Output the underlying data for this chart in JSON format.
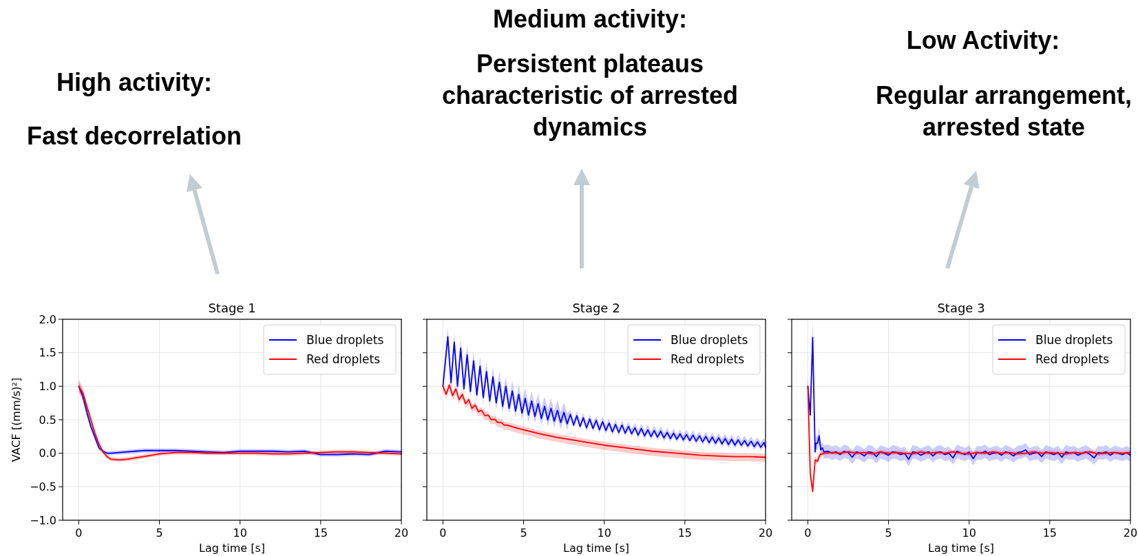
{
  "chart_data": [
    {
      "type": "line",
      "title": "Stage 1",
      "xlabel": "Lag time [s]",
      "ylabel": "VACF [(mm/s)²]",
      "annotations": [
        "High activity:",
        "Fast decorrelation"
      ],
      "xlim": [
        -1,
        20
      ],
      "xticks": [
        0,
        5,
        10,
        15,
        20
      ],
      "ylim": [
        -1,
        2
      ],
      "yticks": [
        {
          "value": -1,
          "label": "−1.0"
        },
        {
          "value": -0.5,
          "label": "−0.5"
        },
        {
          "value": 0,
          "label": "0.0"
        },
        {
          "value": 0.5,
          "label": "0.5"
        },
        {
          "value": 1,
          "label": "1.0"
        },
        {
          "value": 1.5,
          "label": "1.5"
        },
        {
          "value": 2,
          "label": "2.0"
        }
      ],
      "grid": true,
      "legend": "top right",
      "series": [
        {
          "name": "Blue droplets",
          "color": "#0000ff",
          "x": [
            0,
            0.25,
            0.5,
            0.75,
            1,
            1.25,
            1.5,
            1.75,
            2,
            2.5,
            3,
            3.5,
            4,
            5,
            6,
            7,
            8,
            9,
            10,
            11,
            12,
            13,
            14,
            15,
            16,
            17,
            18,
            19,
            20
          ],
          "values": [
            1.0,
            0.85,
            0.61,
            0.4,
            0.24,
            0.08,
            0.03,
            0.0,
            0.0,
            0.01,
            0.02,
            0.03,
            0.04,
            0.04,
            0.04,
            0.03,
            0.02,
            0.01,
            0.03,
            0.03,
            0.03,
            0.02,
            0.03,
            -0.02,
            -0.02,
            -0.01,
            -0.02,
            0.03,
            0.02
          ],
          "upper": [
            1.08,
            0.92,
            0.67,
            0.45,
            0.28,
            0.12,
            0.06,
            0.03,
            0.03,
            0.04,
            0.05,
            0.06,
            0.07,
            0.07,
            0.07,
            0.06,
            0.05,
            0.04,
            0.06,
            0.06,
            0.06,
            0.05,
            0.06,
            0.01,
            0.01,
            0.02,
            0.01,
            0.06,
            0.05
          ],
          "lower": [
            0.92,
            0.78,
            0.55,
            0.35,
            0.2,
            0.04,
            0.0,
            -0.03,
            -0.03,
            -0.02,
            -0.01,
            0.0,
            0.01,
            0.01,
            0.01,
            0.0,
            -0.01,
            -0.02,
            0.0,
            0.0,
            0.0,
            -0.01,
            0.0,
            -0.05,
            -0.05,
            -0.04,
            -0.05,
            0.0,
            -0.01
          ]
        },
        {
          "name": "Red droplets",
          "color": "#ff0000",
          "x": [
            0,
            0.25,
            0.5,
            0.75,
            1,
            1.25,
            1.5,
            1.75,
            2,
            2.5,
            3,
            3.5,
            4,
            5,
            6,
            7,
            8,
            9,
            10,
            11,
            12,
            13,
            14,
            15,
            16,
            17,
            18,
            19,
            20
          ],
          "values": [
            1.0,
            0.9,
            0.7,
            0.5,
            0.3,
            0.14,
            0.02,
            -0.05,
            -0.09,
            -0.1,
            -0.09,
            -0.07,
            -0.05,
            -0.01,
            0.01,
            0.01,
            0.0,
            0.0,
            0.0,
            0.0,
            -0.01,
            -0.01,
            0.0,
            0.01,
            0.02,
            0.02,
            0.01,
            0.0,
            -0.01
          ],
          "upper": [
            1.1,
            0.98,
            0.77,
            0.56,
            0.35,
            0.18,
            0.05,
            -0.02,
            -0.06,
            -0.07,
            -0.06,
            -0.04,
            -0.02,
            0.02,
            0.04,
            0.04,
            0.03,
            0.03,
            0.03,
            0.03,
            0.02,
            0.02,
            0.03,
            0.04,
            0.05,
            0.05,
            0.04,
            0.03,
            0.02
          ],
          "lower": [
            0.9,
            0.82,
            0.63,
            0.44,
            0.25,
            0.1,
            -0.01,
            -0.08,
            -0.12,
            -0.13,
            -0.12,
            -0.1,
            -0.08,
            -0.04,
            -0.02,
            -0.02,
            -0.03,
            -0.03,
            -0.03,
            -0.03,
            -0.04,
            -0.04,
            -0.03,
            -0.02,
            -0.01,
            -0.01,
            -0.02,
            -0.03,
            -0.04
          ]
        }
      ]
    },
    {
      "type": "line",
      "title": "Stage 2",
      "xlabel": "Lag time [s]",
      "annotations": [
        "Medium activity:",
        "Persistent plateaus characteristic of arrested dynamics"
      ],
      "xlim": [
        -1,
        20
      ],
      "xticks": [
        0,
        5,
        10,
        15,
        20
      ],
      "ylim": [
        -1,
        2
      ],
      "yticks": [
        {
          "value": -1,
          "label": null
        },
        {
          "value": -0.5,
          "label": null
        },
        {
          "value": 0,
          "label": null
        },
        {
          "value": 0.5,
          "label": null
        },
        {
          "value": 1,
          "label": null
        },
        {
          "value": 1.5,
          "label": null
        },
        {
          "value": 2,
          "label": null
        }
      ],
      "tick_labels": "x",
      "grid": true,
      "legend": "top right",
      "series": [
        {
          "name": "Blue droplets",
          "color": "#0000ff",
          "x": [
            0,
            0.1,
            0.3,
            0.5,
            0.7,
            0.9,
            1.1,
            1.3,
            1.5,
            1.7,
            1.9,
            2.1,
            2.3,
            2.5,
            2.7,
            2.9,
            3.1,
            3.3,
            3.5,
            3.7,
            3.9,
            4.1,
            4.3,
            4.5,
            4.7,
            4.9,
            5.1,
            5.3,
            5.5,
            5.7,
            5.9,
            6.1,
            6.3,
            6.5,
            6.7,
            6.9,
            7.1,
            7.3,
            7.5,
            7.7,
            7.9,
            8.1,
            8.3,
            8.5,
            8.7,
            8.9,
            9.1,
            9.3,
            9.5,
            9.7,
            9.9,
            10.1,
            10.3,
            10.5,
            10.7,
            10.9,
            11.1,
            11.3,
            11.5,
            11.7,
            11.9,
            12.1,
            12.3,
            12.5,
            12.7,
            12.9,
            13.1,
            13.3,
            13.5,
            13.7,
            13.9,
            14.1,
            14.3,
            14.5,
            14.7,
            14.9,
            15.1,
            15.3,
            15.5,
            15.7,
            15.9,
            16.1,
            16.3,
            16.5,
            16.7,
            16.9,
            17.1,
            17.3,
            17.5,
            17.7,
            17.9,
            18.1,
            18.3,
            18.5,
            18.7,
            18.9,
            19.1,
            19.3,
            19.5,
            19.7,
            19.9,
            20
          ],
          "values": [
            1.0,
            1.25,
            1.74,
            1.05,
            1.66,
            1.0,
            1.57,
            0.96,
            1.47,
            0.92,
            1.38,
            0.87,
            1.3,
            0.83,
            1.22,
            0.78,
            1.14,
            0.75,
            1.06,
            0.7,
            1.0,
            0.67,
            0.93,
            0.63,
            0.88,
            0.6,
            0.82,
            0.57,
            0.78,
            0.55,
            0.74,
            0.52,
            0.7,
            0.5,
            0.67,
            0.48,
            0.64,
            0.46,
            0.61,
            0.44,
            0.58,
            0.42,
            0.56,
            0.4,
            0.53,
            0.38,
            0.51,
            0.37,
            0.49,
            0.35,
            0.47,
            0.34,
            0.45,
            0.32,
            0.43,
            0.31,
            0.42,
            0.3,
            0.4,
            0.29,
            0.38,
            0.27,
            0.37,
            0.26,
            0.35,
            0.25,
            0.34,
            0.24,
            0.33,
            0.23,
            0.31,
            0.22,
            0.3,
            0.21,
            0.29,
            0.2,
            0.28,
            0.19,
            0.27,
            0.18,
            0.26,
            0.17,
            0.25,
            0.16,
            0.24,
            0.15,
            0.23,
            0.14,
            0.22,
            0.13,
            0.21,
            0.12,
            0.2,
            0.12,
            0.19,
            0.11,
            0.18,
            0.1,
            0.17,
            0.09,
            0.16,
            0.09
          ],
          "upper": [
            1.15,
            1.4,
            1.89,
            1.2,
            1.81,
            1.15,
            1.72,
            1.11,
            1.62,
            1.07,
            1.53,
            1.02,
            1.45,
            0.98,
            1.37,
            0.93,
            1.29,
            0.9,
            1.21,
            0.85,
            1.15,
            0.82,
            1.08,
            0.78,
            1.03,
            0.75,
            0.97,
            0.72,
            0.93,
            0.7,
            0.89,
            0.67,
            0.85,
            0.65,
            0.82,
            0.63,
            0.79,
            0.61,
            0.76,
            0.59,
            0.65,
            0.49,
            0.63,
            0.47,
            0.6,
            0.45,
            0.58,
            0.44,
            0.56,
            0.42,
            0.54,
            0.41,
            0.52,
            0.39,
            0.5,
            0.38,
            0.49,
            0.37,
            0.47,
            0.36,
            0.45,
            0.34,
            0.44,
            0.33,
            0.42,
            0.32,
            0.41,
            0.31,
            0.4,
            0.3,
            0.38,
            0.29,
            0.37,
            0.28,
            0.36,
            0.27,
            0.35,
            0.26,
            0.34,
            0.25,
            0.33,
            0.24,
            0.32,
            0.23,
            0.31,
            0.22,
            0.3,
            0.21,
            0.29,
            0.2,
            0.28,
            0.19,
            0.27,
            0.19,
            0.26,
            0.18,
            0.25,
            0.17,
            0.24,
            0.16,
            0.23,
            0.16
          ],
          "lower": [
            0.9,
            1.15,
            1.64,
            0.95,
            1.56,
            0.9,
            1.47,
            0.86,
            1.37,
            0.82,
            1.28,
            0.77,
            1.2,
            0.73,
            1.12,
            0.68,
            1.04,
            0.65,
            0.96,
            0.6,
            0.9,
            0.57,
            0.83,
            0.53,
            0.78,
            0.5,
            0.72,
            0.47,
            0.68,
            0.45,
            0.64,
            0.42,
            0.6,
            0.4,
            0.57,
            0.38,
            0.54,
            0.36,
            0.51,
            0.34,
            0.53,
            0.37,
            0.51,
            0.35,
            0.48,
            0.33,
            0.46,
            0.32,
            0.44,
            0.3,
            0.42,
            0.29,
            0.4,
            0.27,
            0.38,
            0.26,
            0.37,
            0.25,
            0.35,
            0.24,
            0.33,
            0.22,
            0.32,
            0.21,
            0.3,
            0.2,
            0.29,
            0.19,
            0.28,
            0.18,
            0.26,
            0.17,
            0.25,
            0.16,
            0.24,
            0.15,
            0.23,
            0.14,
            0.22,
            0.13,
            0.21,
            0.12,
            0.2,
            0.11,
            0.19,
            0.1,
            0.18,
            0.09,
            0.17,
            0.08,
            0.16,
            0.07,
            0.15,
            0.07,
            0.14,
            0.06,
            0.13,
            0.05,
            0.12,
            0.04,
            0.11,
            0.04
          ]
        },
        {
          "name": "Red droplets",
          "color": "#ff0000",
          "x": [
            0,
            0.2,
            0.4,
            0.6,
            0.8,
            1.0,
            1.2,
            1.4,
            1.6,
            1.8,
            2.0,
            2.2,
            2.4,
            2.6,
            2.8,
            3.0,
            3.2,
            3.4,
            3.6,
            3.8,
            4,
            4.5,
            5,
            6,
            7,
            8,
            9,
            10,
            11,
            12,
            13,
            14,
            15,
            16,
            17,
            18,
            19,
            20
          ],
          "values": [
            1.0,
            0.88,
            1.02,
            0.86,
            0.96,
            0.8,
            0.88,
            0.74,
            0.8,
            0.67,
            0.72,
            0.62,
            0.64,
            0.56,
            0.57,
            0.5,
            0.51,
            0.46,
            0.46,
            0.42,
            0.42,
            0.38,
            0.35,
            0.29,
            0.24,
            0.2,
            0.16,
            0.12,
            0.09,
            0.06,
            0.03,
            0.01,
            -0.01,
            -0.03,
            -0.04,
            -0.05,
            -0.05,
            -0.06
          ],
          "upper": [
            1.05,
            0.93,
            1.07,
            0.91,
            1.01,
            0.85,
            0.93,
            0.79,
            0.85,
            0.72,
            0.77,
            0.67,
            0.69,
            0.61,
            0.62,
            0.55,
            0.56,
            0.51,
            0.51,
            0.47,
            0.47,
            0.43,
            0.4,
            0.34,
            0.29,
            0.25,
            0.21,
            0.17,
            0.14,
            0.11,
            0.08,
            0.06,
            0.04,
            0.02,
            0.01,
            0.0,
            0.0,
            -0.01
          ],
          "lower": [
            0.93,
            0.81,
            0.95,
            0.79,
            0.89,
            0.73,
            0.81,
            0.67,
            0.73,
            0.6,
            0.65,
            0.55,
            0.57,
            0.49,
            0.5,
            0.43,
            0.44,
            0.39,
            0.39,
            0.35,
            0.35,
            0.31,
            0.28,
            0.22,
            0.17,
            0.13,
            0.09,
            0.05,
            0.02,
            -0.01,
            -0.04,
            -0.06,
            -0.08,
            -0.1,
            -0.11,
            -0.12,
            -0.12,
            -0.13
          ]
        }
      ]
    },
    {
      "type": "line",
      "title": "Stage 3",
      "xlabel": "Lag time [s]",
      "annotations": [
        "Low Activity:",
        "Regular arrangement, arrested state"
      ],
      "xlim": [
        -1,
        20
      ],
      "xticks": [
        0,
        5,
        10,
        15,
        20
      ],
      "ylim": [
        -1,
        2
      ],
      "yticks": [
        {
          "value": -1,
          "label": null
        },
        {
          "value": -0.5,
          "label": null
        },
        {
          "value": 0,
          "label": null
        },
        {
          "value": 0.5,
          "label": null
        },
        {
          "value": 1,
          "label": null
        },
        {
          "value": 1.5,
          "label": null
        },
        {
          "value": 2,
          "label": null
        }
      ],
      "tick_labels": "x",
      "grid": true,
      "legend": "top right",
      "series": [
        {
          "name": "Blue droplets",
          "color": "#0000ff",
          "x": [
            0,
            0.15,
            0.3,
            0.45,
            0.5,
            0.6,
            0.7,
            0.8,
            0.9,
            1,
            1.25,
            1.5,
            1.75,
            2,
            2.25,
            2.5,
            2.75,
            3,
            3.25,
            3.5,
            3.75,
            4,
            4.25,
            4.5,
            4.75,
            5,
            5.25,
            5.5,
            5.75,
            6,
            6.25,
            6.5,
            6.75,
            7,
            7.25,
            7.5,
            7.75,
            8,
            8.25,
            8.5,
            8.75,
            9,
            9.25,
            9.5,
            9.75,
            10,
            10.25,
            10.5,
            10.75,
            11,
            11.25,
            11.5,
            11.75,
            12,
            12.25,
            12.5,
            12.75,
            13,
            13.25,
            13.5,
            13.75,
            14,
            14.25,
            14.5,
            14.75,
            15,
            15.25,
            15.5,
            15.75,
            16,
            16.25,
            16.5,
            16.75,
            17,
            17.25,
            17.5,
            17.75,
            18,
            18.25,
            18.5,
            18.75,
            19,
            19.25,
            19.5,
            19.75,
            20
          ],
          "values": [
            1.0,
            0.57,
            1.73,
            0.02,
            0.15,
            0.15,
            0.26,
            0.05,
            0.08,
            0.02,
            0.03,
            0.0,
            0.02,
            -0.02,
            0.03,
            0.01,
            -0.06,
            0.02,
            0.0,
            -0.04,
            0.02,
            0.01,
            -0.05,
            0.02,
            0.0,
            -0.03,
            0.02,
            0.01,
            -0.02,
            0.0,
            -0.09,
            0.02,
            0.01,
            -0.03,
            0.0,
            0.02,
            -0.04,
            0.01,
            0.02,
            -0.02,
            0.0,
            -0.07,
            0.03,
            0.0,
            -0.02,
            0.02,
            -0.08,
            0.01,
            0.0,
            0.03,
            -0.02,
            0.0,
            0.01,
            -0.03,
            0.02,
            0.0,
            -0.04,
            0.01,
            0.02,
            0.05,
            -0.02,
            0.0,
            0.01,
            -0.05,
            0.02,
            0.0,
            -0.02,
            0.01,
            -0.06,
            0.02,
            0.0,
            0.01,
            -0.03,
            0.0,
            0.02,
            -0.02,
            -0.07,
            0.01,
            0.0,
            0.02,
            -0.03,
            0.01,
            0.0,
            -0.02,
            0.01,
            -0.03
          ],
          "upper": [
            1.12,
            0.65,
            2.0,
            0.1,
            0.25,
            0.25,
            0.4,
            0.15,
            0.15,
            0.12,
            0.13,
            0.1,
            0.12,
            0.08,
            0.13,
            0.11,
            0.04,
            0.12,
            0.1,
            0.06,
            0.12,
            0.11,
            0.05,
            0.12,
            0.1,
            0.07,
            0.12,
            0.11,
            0.08,
            0.1,
            0.01,
            0.12,
            0.11,
            0.07,
            0.1,
            0.12,
            0.06,
            0.11,
            0.12,
            0.08,
            0.1,
            0.03,
            0.13,
            0.1,
            0.08,
            0.12,
            0.02,
            0.11,
            0.1,
            0.13,
            0.08,
            0.1,
            0.11,
            0.07,
            0.12,
            0.1,
            0.06,
            0.11,
            0.12,
            0.15,
            0.08,
            0.1,
            0.11,
            0.05,
            0.12,
            0.1,
            0.08,
            0.11,
            0.04,
            0.12,
            0.1,
            0.11,
            0.07,
            0.1,
            0.12,
            0.08,
            0.03,
            0.11,
            0.1,
            0.12,
            0.07,
            0.11,
            0.1,
            0.08,
            0.11,
            0.07
          ],
          "lower": [
            0.9,
            0.5,
            1.5,
            -0.05,
            0.05,
            0.05,
            0.15,
            -0.05,
            0.0,
            -0.08,
            -0.07,
            -0.1,
            -0.08,
            -0.12,
            -0.07,
            -0.09,
            -0.16,
            -0.08,
            -0.1,
            -0.14,
            -0.08,
            -0.09,
            -0.15,
            -0.08,
            -0.1,
            -0.13,
            -0.08,
            -0.09,
            -0.12,
            -0.1,
            -0.19,
            -0.08,
            -0.09,
            -0.13,
            -0.1,
            -0.08,
            -0.14,
            -0.09,
            -0.08,
            -0.12,
            -0.1,
            -0.17,
            -0.07,
            -0.1,
            -0.12,
            -0.08,
            -0.18,
            -0.09,
            -0.1,
            -0.07,
            -0.12,
            -0.1,
            -0.09,
            -0.13,
            -0.08,
            -0.1,
            -0.14,
            -0.09,
            -0.08,
            -0.05,
            -0.12,
            -0.1,
            -0.09,
            -0.15,
            -0.08,
            -0.1,
            -0.12,
            -0.09,
            -0.16,
            -0.08,
            -0.1,
            -0.09,
            -0.13,
            -0.1,
            -0.08,
            -0.12,
            -0.17,
            -0.09,
            -0.1,
            -0.08,
            -0.13,
            -0.09,
            -0.1,
            -0.12,
            -0.09,
            -0.13
          ]
        },
        {
          "name": "Red droplets",
          "color": "#ff0000",
          "x": [
            0,
            0.15,
            0.3,
            0.45,
            0.6,
            0.75,
            0.9,
            1,
            1.5,
            2,
            2.5,
            3,
            3.5,
            4,
            4.5,
            5,
            5.5,
            6,
            6.5,
            7,
            7.5,
            8,
            8.5,
            9,
            9.5,
            10,
            10.5,
            11,
            11.5,
            12,
            12.5,
            13,
            13.5,
            14,
            14.5,
            15,
            15.5,
            16,
            16.5,
            17,
            17.5,
            18,
            18.5,
            19,
            19.5,
            20
          ],
          "values": [
            1.0,
            -0.3,
            -0.57,
            -0.1,
            -0.12,
            -0.02,
            -0.01,
            0.0,
            0.01,
            0.0,
            0.02,
            0.0,
            0.01,
            -0.01,
            0.02,
            0.0,
            0.01,
            0.0,
            -0.01,
            0.02,
            0.0,
            0.01,
            0.0,
            0.02,
            0.0,
            -0.01,
            0.01,
            0.0,
            0.02,
            0.0,
            0.01,
            -0.01,
            0.0,
            0.02,
            0.0,
            0.01,
            0.0,
            -0.01,
            0.01,
            0.0,
            0.02,
            -0.01,
            0.0,
            0.01,
            0.0,
            0.01
          ],
          "upper": [
            1.15,
            -0.2,
            -0.47,
            -0.05,
            -0.07,
            0.02,
            0.03,
            0.03,
            0.04,
            0.03,
            0.05,
            0.03,
            0.04,
            0.02,
            0.05,
            0.03,
            0.04,
            0.03,
            0.02,
            0.05,
            0.03,
            0.04,
            0.03,
            0.05,
            0.03,
            0.02,
            0.04,
            0.03,
            0.05,
            0.03,
            0.04,
            0.02,
            0.03,
            0.05,
            0.03,
            0.04,
            0.03,
            0.02,
            0.04,
            0.03,
            0.05,
            0.02,
            0.03,
            0.04,
            0.03,
            0.04
          ],
          "lower": [
            0.9,
            -0.4,
            -0.65,
            -0.15,
            -0.17,
            -0.06,
            -0.05,
            -0.03,
            -0.02,
            -0.03,
            -0.01,
            -0.03,
            -0.02,
            -0.04,
            -0.01,
            -0.03,
            -0.02,
            -0.03,
            -0.04,
            -0.01,
            -0.03,
            -0.02,
            -0.03,
            -0.01,
            -0.03,
            -0.04,
            -0.02,
            -0.03,
            -0.01,
            -0.03,
            -0.02,
            -0.04,
            -0.03,
            -0.01,
            -0.03,
            -0.02,
            -0.03,
            -0.04,
            -0.02,
            -0.03,
            -0.01,
            -0.04,
            -0.03,
            -0.02,
            -0.03,
            -0.02
          ]
        }
      ]
    }
  ]
}
